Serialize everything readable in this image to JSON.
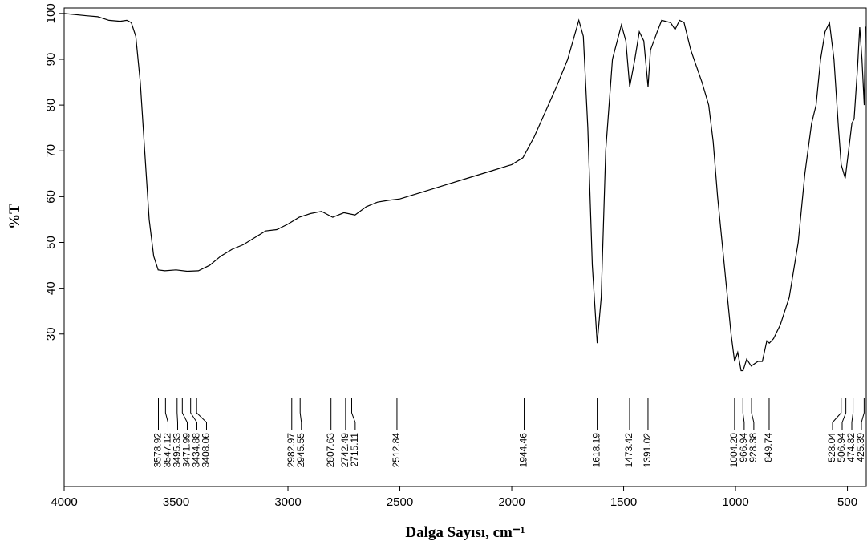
{
  "chart_data": {
    "type": "line",
    "xlabel": "Dalga Sayısı, cm⁻¹",
    "ylabel": "%T",
    "xlim": [
      4000,
      416
    ],
    "ylim": [
      -3.3,
      101.2
    ],
    "xticks": [
      4000,
      3500,
      3000,
      2500,
      2000,
      1500,
      1000,
      500
    ],
    "yticks": [
      30,
      40,
      50,
      60,
      70,
      80,
      90,
      100
    ],
    "series": [
      {
        "color": "#000000",
        "x": [
          4000,
          3900,
          3850,
          3800,
          3750,
          3720,
          3700,
          3680,
          3660,
          3640,
          3620,
          3600,
          3580,
          3550,
          3500,
          3450,
          3400,
          3350,
          3300,
          3250,
          3200,
          3150,
          3100,
          3050,
          3000,
          2950,
          2900,
          2850,
          2800,
          2750,
          2700,
          2650,
          2600,
          2550,
          2500,
          2400,
          2300,
          2200,
          2100,
          2000,
          1950,
          1900,
          1800,
          1750,
          1700,
          1680,
          1660,
          1640,
          1618,
          1600,
          1580,
          1550,
          1510,
          1490,
          1473,
          1450,
          1430,
          1410,
          1391,
          1380,
          1350,
          1330,
          1290,
          1270,
          1250,
          1230,
          1200,
          1150,
          1120,
          1100,
          1080,
          1050,
          1020,
          1004,
          990,
          975,
          966,
          950,
          930,
          900,
          880,
          860,
          849,
          830,
          800,
          760,
          720,
          690,
          660,
          640,
          620,
          600,
          580,
          560,
          540,
          528,
          510,
          495,
          480,
          470,
          455,
          445,
          435,
          425,
          420,
          416
        ],
        "values": [
          100,
          99.5,
          99.3,
          98.5,
          98.3,
          98.5,
          98,
          95,
          85,
          70,
          55,
          47,
          44,
          43.8,
          44,
          43.7,
          43.8,
          45,
          47,
          48.5,
          49.5,
          51,
          52.5,
          52.8,
          54,
          55.5,
          56.3,
          56.8,
          55.5,
          56.5,
          56,
          57.8,
          58.8,
          59.2,
          59.5,
          61,
          62.5,
          64,
          65.5,
          67,
          68.5,
          73,
          84,
          90,
          98.5,
          95,
          75,
          45,
          28,
          38,
          70,
          90,
          97.5,
          94,
          84,
          90,
          96,
          94,
          84,
          92,
          96,
          98.5,
          98,
          96.5,
          98.5,
          98,
          92,
          85,
          80,
          72,
          60,
          45,
          30,
          24,
          26,
          22,
          22,
          24.5,
          23,
          24,
          24,
          28.5,
          28,
          29,
          32,
          38,
          50,
          65,
          76,
          80,
          90,
          96,
          98,
          90,
          75,
          67,
          64,
          70,
          76,
          77,
          88,
          97,
          90,
          80,
          97,
          97
        ]
      }
    ],
    "peaks": [
      3578.92,
      3547.12,
      3495.33,
      3471.99,
      3434.88,
      3408.06,
      2982.97,
      2945.55,
      2807.63,
      2742.49,
      2715.11,
      2512.84,
      1944.46,
      1618.19,
      1473.42,
      1391.02,
      {
        "value": 1004.2,
        "label": "1004.20"
      },
      966.94,
      928.38,
      849.74,
      528.04,
      506.94,
      474.82,
      425.39
    ]
  }
}
